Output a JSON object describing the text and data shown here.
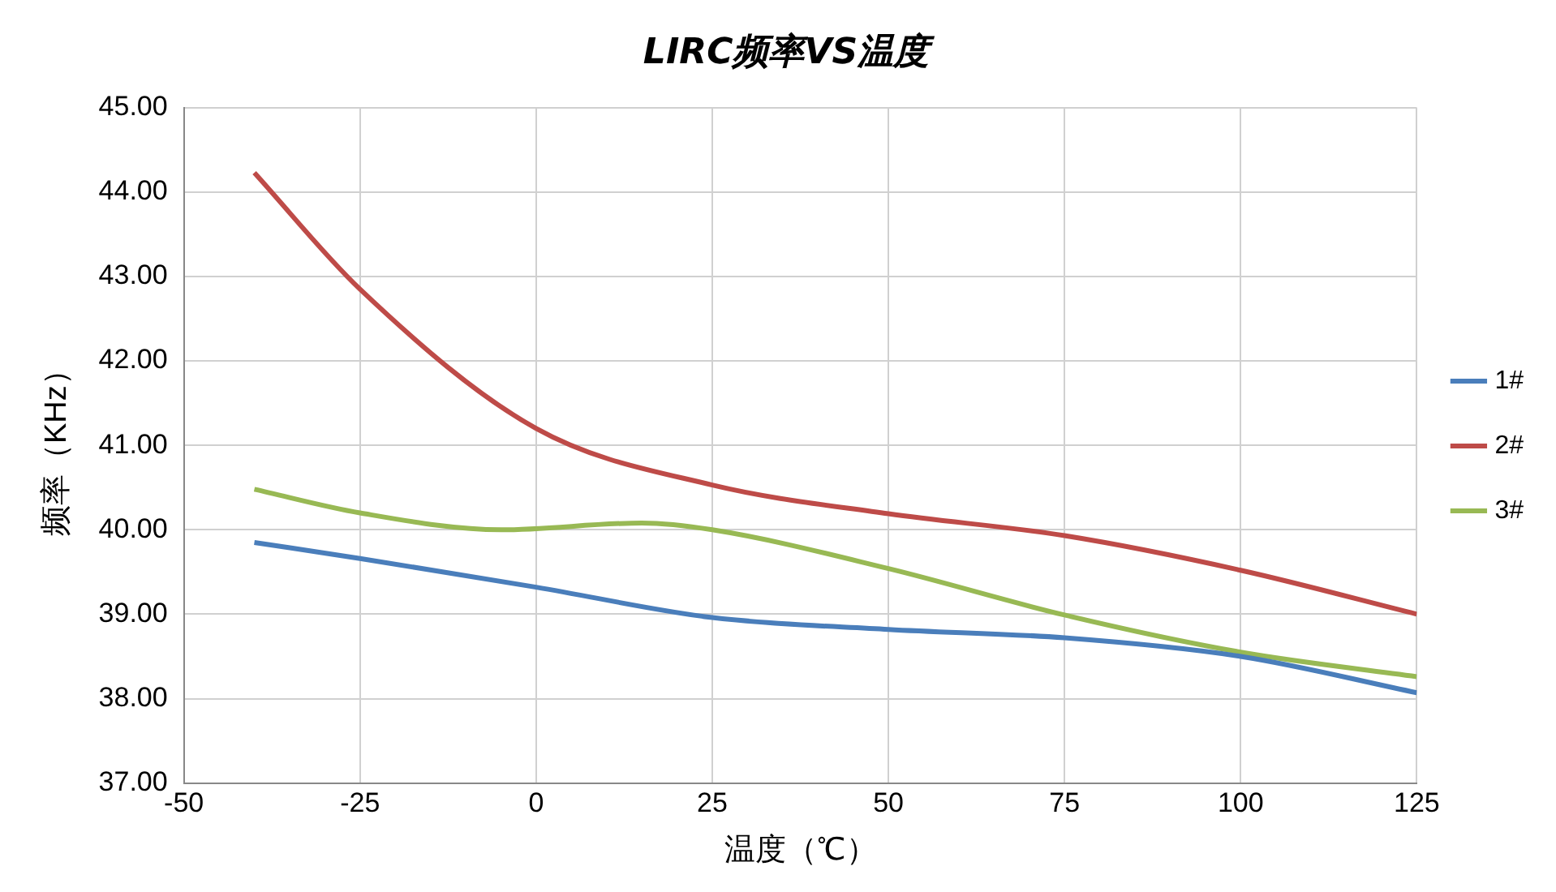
{
  "chart_data": {
    "type": "line",
    "title": "LIRC频率VS温度",
    "xlabel": "温度（℃）",
    "ylabel": "频率（KHz）",
    "xlim": [
      -50,
      125
    ],
    "xticks": [
      -50,
      -25,
      0,
      25,
      50,
      75,
      100,
      125
    ],
    "ylim": [
      37,
      45
    ],
    "yticks": [
      {
        "value": 37,
        "label": "37.00"
      },
      {
        "value": 38,
        "label": "38.00"
      },
      {
        "value": 39,
        "label": "39.00"
      },
      {
        "value": 40,
        "label": "40.00"
      },
      {
        "value": 41,
        "label": "41.00"
      },
      {
        "value": 42,
        "label": "42.00"
      },
      {
        "value": 43,
        "label": "43.00"
      },
      {
        "value": 44,
        "label": "44.00"
      },
      {
        "value": 45,
        "label": "45.00"
      }
    ],
    "grid": true,
    "legend": "right",
    "marker": "none",
    "line_style": "solid",
    "series": [
      {
        "name": "1#",
        "color": "#4a7ebb",
        "x": [
          -40,
          -25,
          0,
          25,
          50,
          75,
          100,
          125
        ],
        "values": [
          39.85,
          39.66,
          39.32,
          38.96,
          38.82,
          38.72,
          38.5,
          38.07
        ]
      },
      {
        "name": "2#",
        "color": "#be4b48",
        "x": [
          -40,
          -25,
          0,
          25,
          50,
          75,
          100,
          125
        ],
        "values": [
          44.23,
          42.85,
          41.2,
          40.53,
          40.19,
          39.93,
          39.52,
          39.0
        ]
      },
      {
        "name": "3#",
        "color": "#98b954",
        "x": [
          -40,
          -25,
          -5,
          15,
          25,
          50,
          75,
          100,
          125
        ],
        "values": [
          40.48,
          40.2,
          40.0,
          40.08,
          40.0,
          39.54,
          38.99,
          38.55,
          38.26
        ]
      }
    ]
  }
}
